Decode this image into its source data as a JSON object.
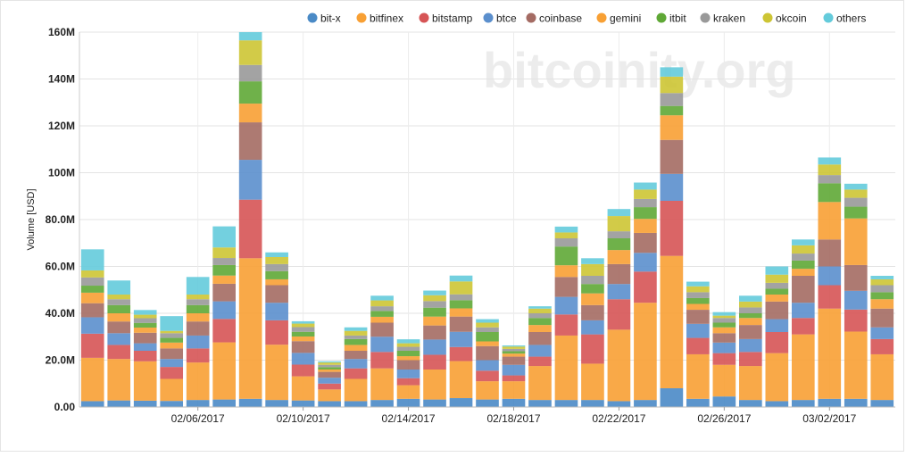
{
  "watermark": "bitcoinity.org",
  "chart_data": {
    "type": "bar",
    "stacked": true,
    "ylabel": "Volume [USD]",
    "ylim": [
      0,
      160000000
    ],
    "y_ticks": [
      0,
      20000000,
      40000000,
      60000000,
      80000000,
      100000000,
      120000000,
      140000000,
      160000000
    ],
    "y_tick_labels": [
      "0.00",
      "20.0M",
      "40.0M",
      "60.0M",
      "80.0M",
      "100M",
      "120M",
      "140M",
      "160M"
    ],
    "grid": true,
    "legend_position": "top-right",
    "categories": [
      "02/02/2017",
      "02/03/2017",
      "02/04/2017",
      "02/05/2017",
      "02/06/2017",
      "02/07/2017",
      "02/08/2017",
      "02/09/2017",
      "02/10/2017",
      "02/11/2017",
      "02/12/2017",
      "02/13/2017",
      "02/14/2017",
      "02/15/2017",
      "02/16/2017",
      "02/17/2017",
      "02/18/2017",
      "02/19/2017",
      "02/20/2017",
      "02/21/2017",
      "02/22/2017",
      "02/23/2017",
      "02/24/2017",
      "02/25/2017",
      "02/26/2017",
      "02/27/2017",
      "02/28/2017",
      "03/01/2017",
      "03/02/2017",
      "03/03/2017",
      "03/04/2017"
    ],
    "x_tick_labels": [
      {
        "index": 4,
        "label": "02/06/2017"
      },
      {
        "index": 8,
        "label": "02/10/2017"
      },
      {
        "index": 12,
        "label": "02/14/2017"
      },
      {
        "index": 16,
        "label": "02/18/2017"
      },
      {
        "index": 20,
        "label": "02/22/2017"
      },
      {
        "index": 24,
        "label": "02/26/2017"
      },
      {
        "index": 28,
        "label": "03/02/2017"
      }
    ],
    "series": [
      {
        "name": "bit-x",
        "color": "#4a8ac6",
        "values": [
          2.5,
          2.8,
          2.7,
          2.6,
          3.0,
          3.2,
          3.5,
          3.0,
          2.8,
          2.5,
          2.5,
          3.0,
          3.5,
          3.2,
          3.8,
          3.2,
          3.5,
          3.0,
          3.0,
          3.0,
          2.5,
          3.0,
          8.0,
          3.5,
          4.5,
          3.0,
          2.5,
          3.0,
          3.5,
          3.5,
          3.0
        ]
      },
      {
        "name": "bitfinex",
        "color": "#f8a034",
        "values": [
          18.5,
          17.7,
          16.8,
          9.4,
          16.0,
          24.4,
          60.0,
          23.6,
          10.3,
          5.0,
          9.5,
          13.5,
          5.8,
          12.8,
          15.8,
          7.8,
          7.5,
          14.5,
          27.5,
          15.5,
          30.5,
          41.5,
          56.5,
          19.0,
          13.5,
          14.5,
          20.5,
          28.0,
          38.5,
          28.7,
          19.5
        ]
      },
      {
        "name": "bitstamp",
        "color": "#d65455",
        "values": [
          10.3,
          6.0,
          4.5,
          5.1,
          6.0,
          10.0,
          25.0,
          10.4,
          5.0,
          2.5,
          4.5,
          7.0,
          3.0,
          6.3,
          6.0,
          4.5,
          2.5,
          4.0,
          9.0,
          12.5,
          13.0,
          13.3,
          23.5,
          7.0,
          5.0,
          6.0,
          9.0,
          7.0,
          10.0,
          9.4,
          6.5
        ]
      },
      {
        "name": "btce",
        "color": "#5b8fcd",
        "values": [
          7.0,
          5.0,
          3.2,
          3.4,
          5.5,
          7.5,
          17.0,
          7.5,
          5.0,
          2.5,
          4.0,
          6.5,
          3.7,
          6.5,
          6.5,
          4.5,
          4.5,
          5.0,
          7.5,
          6.0,
          6.5,
          8.0,
          11.5,
          6.0,
          4.5,
          5.5,
          5.5,
          6.5,
          8.0,
          8.0,
          5.0
        ]
      },
      {
        "name": "coinbase",
        "color": "#a46b63",
        "values": [
          6.0,
          5.0,
          4.5,
          4.5,
          6.0,
          7.5,
          16.0,
          7.5,
          5.0,
          2.5,
          3.5,
          6.0,
          4.0,
          6.0,
          6.5,
          6.0,
          3.5,
          5.5,
          8.5,
          6.5,
          8.5,
          8.5,
          14.5,
          6.0,
          4.0,
          6.0,
          7.5,
          11.5,
          11.5,
          11.0,
          8.0
        ]
      },
      {
        "name": "gemini",
        "color": "#f8a034",
        "values": [
          4.5,
          3.5,
          2.2,
          2.5,
          3.5,
          3.5,
          8.0,
          2.5,
          2.0,
          1.0,
          2.5,
          2.5,
          1.7,
          3.8,
          3.5,
          2.0,
          1.3,
          3.0,
          5.0,
          5.0,
          6.0,
          6.0,
          10.5,
          2.5,
          2.5,
          3.0,
          3.0,
          3.0,
          16.0,
          19.9,
          4.0
        ]
      },
      {
        "name": "itbit",
        "color": "#5fa836",
        "values": [
          3.0,
          3.5,
          2.0,
          2.0,
          3.5,
          4.5,
          9.5,
          3.5,
          2.0,
          1.0,
          2.5,
          2.5,
          2.3,
          3.8,
          3.5,
          4.0,
          1.0,
          3.0,
          8.0,
          4.0,
          5.0,
          5.0,
          4.0,
          2.5,
          2.0,
          2.0,
          2.5,
          3.5,
          8.0,
          5.0,
          3.0
        ]
      },
      {
        "name": "kraken",
        "color": "#999999",
        "values": [
          3.5,
          2.5,
          2.0,
          2.0,
          2.5,
          3.0,
          7.0,
          3.0,
          2.0,
          1.0,
          1.5,
          2.0,
          1.7,
          2.8,
          2.5,
          2.0,
          1.0,
          2.0,
          3.5,
          3.5,
          3.0,
          3.5,
          5.5,
          2.5,
          2.0,
          2.5,
          2.5,
          3.0,
          3.5,
          3.8,
          3.0
        ]
      },
      {
        "name": "okcoin",
        "color": "#cdc534",
        "values": [
          3.0,
          2.0,
          1.5,
          1.0,
          2.0,
          4.5,
          10.5,
          3.0,
          1.5,
          1.0,
          2.0,
          2.5,
          1.5,
          2.5,
          5.5,
          2.0,
          1.0,
          2.0,
          2.5,
          5.0,
          6.5,
          4.0,
          7.0,
          2.5,
          1.0,
          2.5,
          3.5,
          3.5,
          4.5,
          3.5,
          2.5
        ]
      },
      {
        "name": "others",
        "color": "#64cbdb",
        "values": [
          9.0,
          6.0,
          2.0,
          6.3,
          7.5,
          9.0,
          4.0,
          2.0,
          1.0,
          0.5,
          1.5,
          2.0,
          1.7,
          2.0,
          2.5,
          1.5,
          0.5,
          1.0,
          2.5,
          2.5,
          3.0,
          3.0,
          4.0,
          2.0,
          1.5,
          2.5,
          3.5,
          2.5,
          3.0,
          2.5,
          1.5
        ]
      }
    ],
    "value_unit": "M USD"
  }
}
